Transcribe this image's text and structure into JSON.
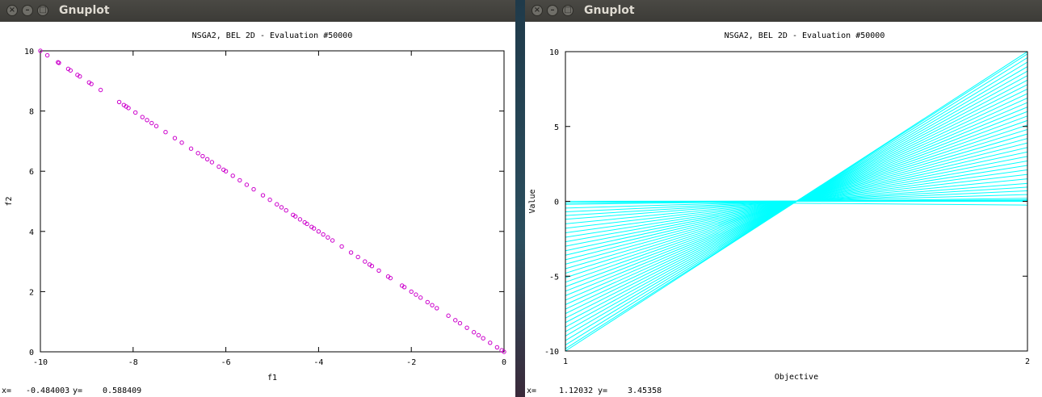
{
  "windows": [
    {
      "id": "left",
      "title": "Gnuplot",
      "status": {
        "x_label": "x=",
        "x_value": "-0.484003",
        "y_label": "y=",
        "y_value": "0.588409"
      }
    },
    {
      "id": "right",
      "title": "Gnuplot",
      "status": {
        "x_label": "x=",
        "x_value": "1.12032",
        "y_label": "y=",
        "y_value": "3.45358"
      }
    }
  ],
  "chart_data": [
    {
      "type": "scatter",
      "title": "NSGA2, BEL 2D - Evaluation #50000",
      "xlabel": "f1",
      "ylabel": "f2",
      "xlim": [
        -10,
        0
      ],
      "ylim": [
        0,
        10
      ],
      "xticks": [
        "-10",
        "-8",
        "-6",
        "-4",
        "-2",
        "0"
      ],
      "yticks": [
        "0",
        "2",
        "4",
        "6",
        "8",
        "10"
      ],
      "marker": "circle",
      "color": "#cc00cc",
      "grid": false,
      "x": [
        -10.0,
        -9.85,
        -9.62,
        -9.6,
        -9.4,
        -9.35,
        -9.2,
        -9.15,
        -8.95,
        -8.9,
        -8.7,
        -8.3,
        -8.2,
        -8.15,
        -8.1,
        -7.95,
        -7.8,
        -7.7,
        -7.6,
        -7.5,
        -7.3,
        -7.1,
        -6.95,
        -6.75,
        -6.6,
        -6.5,
        -6.4,
        -6.3,
        -6.15,
        -6.05,
        -6.0,
        -5.85,
        -5.7,
        -5.55,
        -5.4,
        -5.2,
        -5.05,
        -4.9,
        -4.8,
        -4.7,
        -4.55,
        -4.5,
        -4.4,
        -4.3,
        -4.25,
        -4.15,
        -4.1,
        -4.0,
        -3.9,
        -3.8,
        -3.7,
        -3.5,
        -3.3,
        -3.15,
        -3.0,
        -2.9,
        -2.85,
        -2.7,
        -2.5,
        -2.45,
        -2.2,
        -2.15,
        -2.0,
        -1.9,
        -1.8,
        -1.65,
        -1.55,
        -1.45,
        -1.2,
        -1.05,
        -0.95,
        -0.8,
        -0.65,
        -0.55,
        -0.45,
        -0.3,
        -0.15,
        -0.05,
        0.0
      ],
      "y": [
        10.0,
        9.85,
        9.62,
        9.6,
        9.4,
        9.35,
        9.2,
        9.15,
        8.95,
        8.9,
        8.7,
        8.3,
        8.2,
        8.15,
        8.1,
        7.95,
        7.8,
        7.7,
        7.6,
        7.5,
        7.3,
        7.1,
        6.95,
        6.75,
        6.6,
        6.5,
        6.4,
        6.3,
        6.15,
        6.05,
        6.0,
        5.85,
        5.7,
        5.55,
        5.4,
        5.2,
        5.05,
        4.9,
        4.8,
        4.7,
        4.55,
        4.5,
        4.4,
        4.3,
        4.25,
        4.15,
        4.1,
        4.0,
        3.9,
        3.8,
        3.7,
        3.5,
        3.3,
        3.15,
        3.0,
        2.9,
        2.85,
        2.7,
        2.5,
        2.45,
        2.2,
        2.15,
        2.0,
        1.9,
        1.8,
        1.65,
        1.55,
        1.45,
        1.2,
        1.05,
        0.95,
        0.8,
        0.65,
        0.55,
        0.45,
        0.3,
        0.15,
        0.05,
        0.0
      ]
    },
    {
      "type": "line",
      "subtype": "parallel-coordinates",
      "title": "NSGA2, BEL 2D - Evaluation #50000",
      "xlabel": "Objective",
      "ylabel": "Value",
      "xlim": [
        1,
        2
      ],
      "ylim": [
        -10,
        10
      ],
      "xticks": [
        "1",
        "2"
      ],
      "yticks": [
        "-10",
        "-5",
        "0",
        "5",
        "10"
      ],
      "color": "#00ffff",
      "grid": false,
      "objective_1_values": [
        0.0,
        -0.2,
        -0.45,
        -0.7,
        -0.95,
        -1.2,
        -1.5,
        -1.8,
        -2.1,
        -2.4,
        -2.7,
        -3.0,
        -3.3,
        -3.6,
        -3.9,
        -4.2,
        -4.5,
        -4.8,
        -5.1,
        -5.4,
        -5.7,
        -6.0,
        -6.3,
        -6.6,
        -6.9,
        -7.2,
        -7.5,
        -7.8,
        -8.1,
        -8.4,
        -8.7,
        -9.0,
        -9.3,
        -9.6,
        -9.85,
        -10.0
      ],
      "objective_2_values": [
        0.0,
        0.2,
        0.45,
        0.7,
        0.95,
        1.2,
        1.5,
        1.8,
        2.1,
        2.4,
        2.7,
        3.0,
        3.3,
        3.6,
        3.9,
        4.2,
        4.5,
        4.8,
        5.1,
        5.4,
        5.7,
        6.0,
        6.3,
        6.6,
        6.9,
        7.2,
        7.5,
        7.8,
        8.1,
        8.4,
        8.7,
        9.0,
        9.3,
        9.6,
        9.85,
        10.0
      ]
    }
  ]
}
